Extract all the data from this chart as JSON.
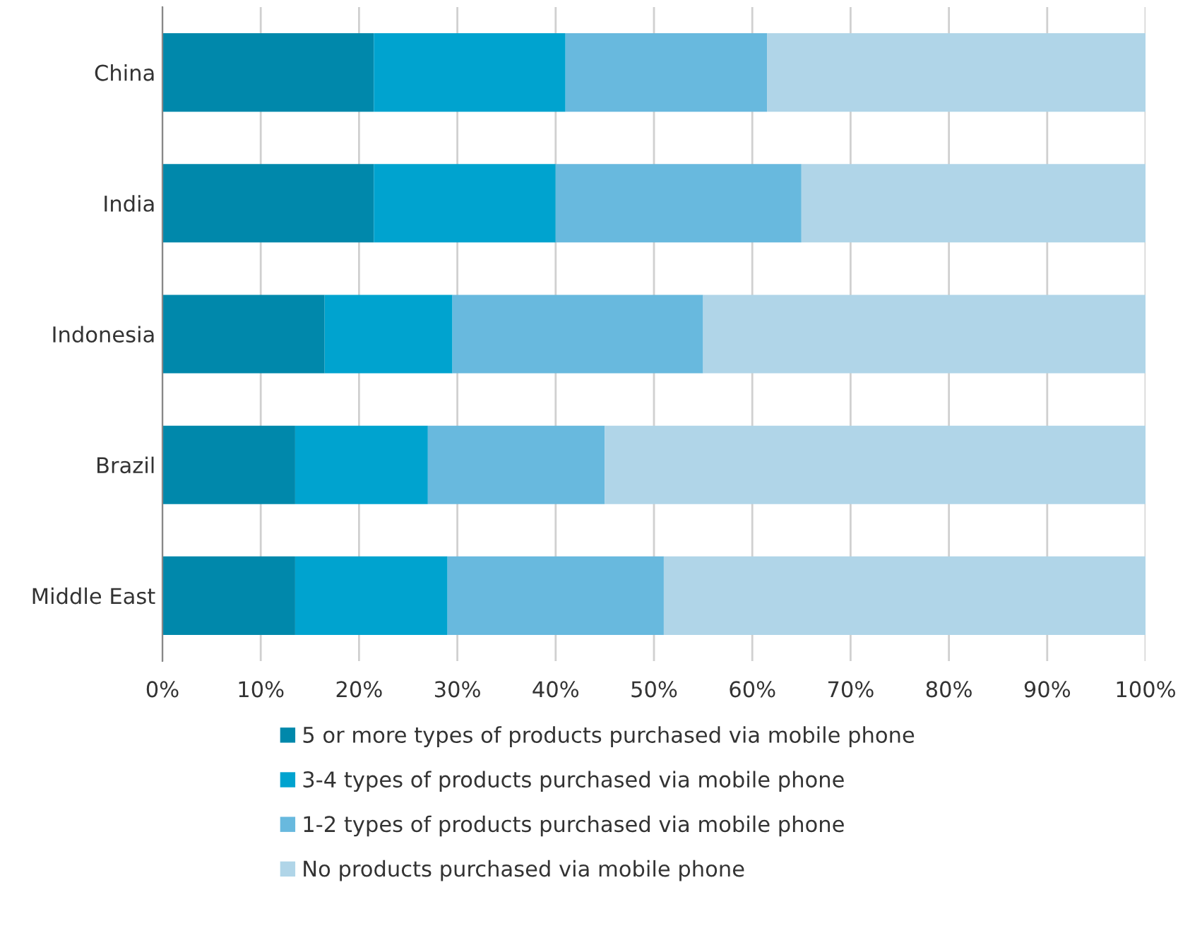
{
  "chart_data": {
    "type": "bar",
    "orientation": "horizontal",
    "stacked": true,
    "categories": [
      "China",
      "India",
      "Indonesia",
      "Brazil",
      "Middle East"
    ],
    "series": [
      {
        "name": "5 or more types of products purchased via mobile phone",
        "color": "#0088ab",
        "values": [
          21.5,
          21.5,
          16.5,
          13.5,
          13.5
        ]
      },
      {
        "name": "3-4 types of products purchased via mobile phone",
        "color": "#00a3cf",
        "values": [
          19.5,
          18.5,
          13,
          13.5,
          15.5
        ]
      },
      {
        "name": "1-2 types of products purchased via mobile phone",
        "color": "#68b9de",
        "values": [
          20.5,
          25,
          25.5,
          18,
          22
        ]
      },
      {
        "name": "No products purchased via mobile phone",
        "color": "#b0d5e8",
        "values": [
          38.5,
          35,
          45,
          55,
          49
        ]
      }
    ],
    "xlim": [
      0,
      100
    ],
    "xticks": [
      {
        "value": 0,
        "label": "0%"
      },
      {
        "value": 10,
        "label": "10%"
      },
      {
        "value": 20,
        "label": "20%"
      },
      {
        "value": 30,
        "label": "30%"
      },
      {
        "value": 40,
        "label": "40%"
      },
      {
        "value": 50,
        "label": "50%"
      },
      {
        "value": 60,
        "label": "60%"
      },
      {
        "value": 70,
        "label": "70%"
      },
      {
        "value": 80,
        "label": "80%"
      },
      {
        "value": 90,
        "label": "90%"
      },
      {
        "value": 100,
        "label": "100%"
      }
    ],
    "grid": "x",
    "legend": "bottom"
  }
}
